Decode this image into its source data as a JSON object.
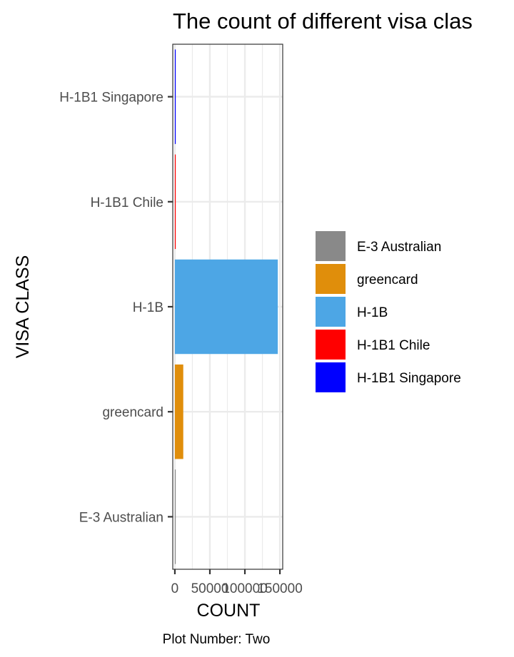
{
  "chart_data": {
    "type": "bar",
    "orientation": "horizontal",
    "title": "The count of different visa clas",
    "xlabel": "COUNT",
    "ylabel": "VISA CLASS",
    "caption": "Plot Number: Two",
    "categories": [
      "E-3 Australian",
      "greencard",
      "H-1B",
      "H-1B1 Chile",
      "H-1B1 Singapore"
    ],
    "values": [
      550,
      12000,
      147000,
      160,
      230
    ],
    "colors": {
      "E-3 Australian": "#898989",
      "greencard": "#E08E0B",
      "H-1B": "#4DA6E5",
      "H-1B1 Chile": "#FF0000",
      "H-1B1 Singapore": "#0000FF"
    },
    "xlim": [
      -3000,
      154000
    ],
    "x_ticks": [
      0,
      50000,
      100000,
      150000
    ],
    "x_tick_labels": [
      "0",
      "50000",
      "100000",
      "150000"
    ],
    "grid": true,
    "legend": {
      "position": "right",
      "entries": [
        "E-3 Australian",
        "greencard",
        "H-1B",
        "H-1B1 Chile",
        "H-1B1 Singapore"
      ]
    }
  }
}
